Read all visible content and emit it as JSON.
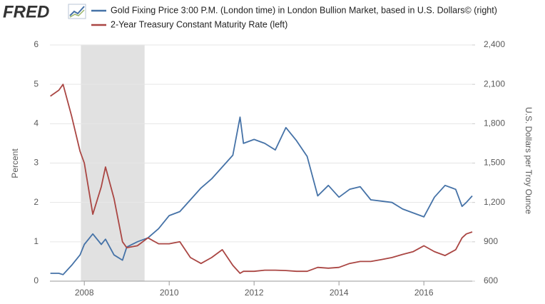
{
  "logo": "FRED",
  "chart_data": {
    "type": "line",
    "y_label": "Percent",
    "y2_label": "U.S. Dollars per Troy Ounce",
    "xlim": [
      2007.19,
      2017.14
    ],
    "xticks": [
      2008,
      2010,
      2012,
      2014,
      2016
    ],
    "ylim": [
      0,
      6
    ],
    "yticks": [
      0,
      1,
      2,
      3,
      4,
      5,
      6
    ],
    "y2lim": [
      600,
      2400
    ],
    "y2ticks": [
      600,
      900,
      {
        "value": 1200,
        "label": "1,200"
      },
      {
        "value": 1500,
        "label": "1,500"
      },
      {
        "value": 1800,
        "label": "1,800"
      },
      {
        "value": 2100,
        "label": "2,100"
      },
      {
        "value": 2400,
        "label": "2,400"
      }
    ],
    "grid": true,
    "shaded_periods": [
      [
        2007.92,
        2009.42
      ]
    ],
    "shade_color": "#e1e1e1",
    "x": [
      2007.2,
      2007.4,
      2007.5,
      2007.7,
      2007.9,
      2008.0,
      2008.2,
      2008.4,
      2008.5,
      2008.7,
      2008.9,
      2009.0,
      2009.25,
      2009.5,
      2009.75,
      2010.0,
      2010.25,
      2010.5,
      2010.75,
      2011.0,
      2011.25,
      2011.5,
      2011.67,
      2011.75,
      2012.0,
      2012.25,
      2012.5,
      2012.75,
      2013.0,
      2013.25,
      2013.5,
      2013.75,
      2014.0,
      2014.25,
      2014.5,
      2014.75,
      2015.0,
      2015.25,
      2015.5,
      2015.75,
      2016.0,
      2016.25,
      2016.5,
      2016.75,
      2016.9,
      2017.0,
      2017.14
    ],
    "series": [
      {
        "name": "Gold Fixing Price 3:00 P.M. (London time) in London Bullion Market, based in U.S. Dollars© (right)",
        "color": "#4572a7",
        "axis": "y2",
        "values": [
          660,
          660,
          650,
          720,
          800,
          880,
          960,
          880,
          920,
          800,
          760,
          860,
          900,
          930,
          1000,
          1100,
          1130,
          1220,
          1310,
          1380,
          1470,
          1560,
          1850,
          1650,
          1680,
          1650,
          1600,
          1770,
          1670,
          1550,
          1250,
          1330,
          1240,
          1300,
          1320,
          1220,
          1210,
          1200,
          1150,
          1120,
          1090,
          1240,
          1330,
          1300,
          1170,
          1200,
          1250
        ]
      },
      {
        "name": "2-Year Treasury Constant Maturity Rate (left)",
        "color": "#aa4643",
        "values": [
          4.7,
          4.85,
          5.0,
          4.2,
          3.3,
          3.0,
          1.7,
          2.4,
          2.9,
          2.1,
          1.0,
          0.85,
          0.9,
          1.1,
          0.95,
          0.95,
          1.0,
          0.6,
          0.45,
          0.6,
          0.8,
          0.4,
          0.2,
          0.25,
          0.25,
          0.28,
          0.28,
          0.27,
          0.25,
          0.25,
          0.35,
          0.33,
          0.35,
          0.45,
          0.5,
          0.5,
          0.55,
          0.6,
          0.68,
          0.75,
          0.9,
          0.75,
          0.65,
          0.8,
          1.1,
          1.2,
          1.25
        ]
      }
    ]
  }
}
